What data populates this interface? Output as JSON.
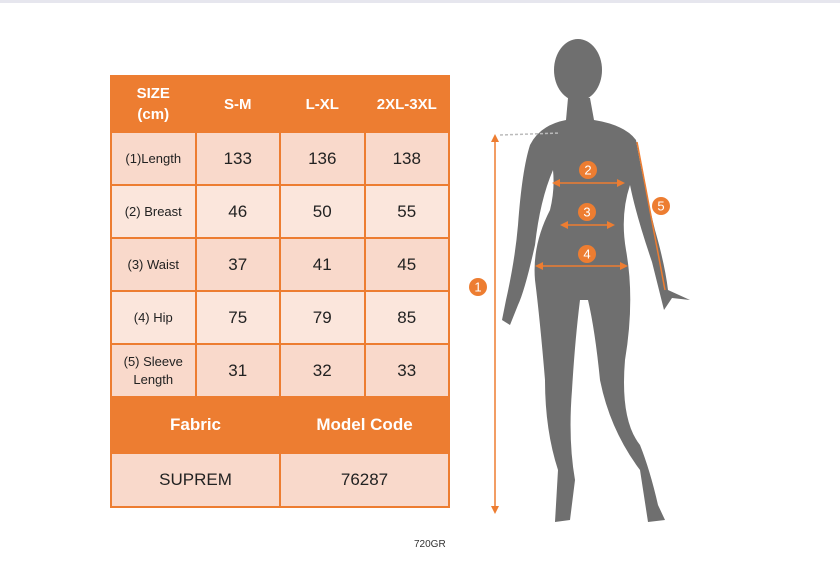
{
  "table": {
    "header": [
      "SIZE (cm)",
      "S-M",
      "L-XL",
      "2XL-3XL"
    ],
    "rows": [
      [
        "(1)Length",
        133,
        136,
        138
      ],
      [
        "(2) Breast",
        46,
        50,
        55
      ],
      [
        "(3) Waist",
        37,
        41,
        45
      ],
      [
        "(4) Hip",
        75,
        79,
        85
      ],
      [
        "(5) Sleeve Length",
        31,
        32,
        33
      ]
    ],
    "footer_header": [
      "Fabric",
      "Model Code"
    ],
    "footer_row": [
      "SUPREM",
      "76287"
    ]
  },
  "caption": "720GR",
  "figure": {
    "markers": [
      "1",
      "2",
      "3",
      "4",
      "5"
    ]
  }
}
